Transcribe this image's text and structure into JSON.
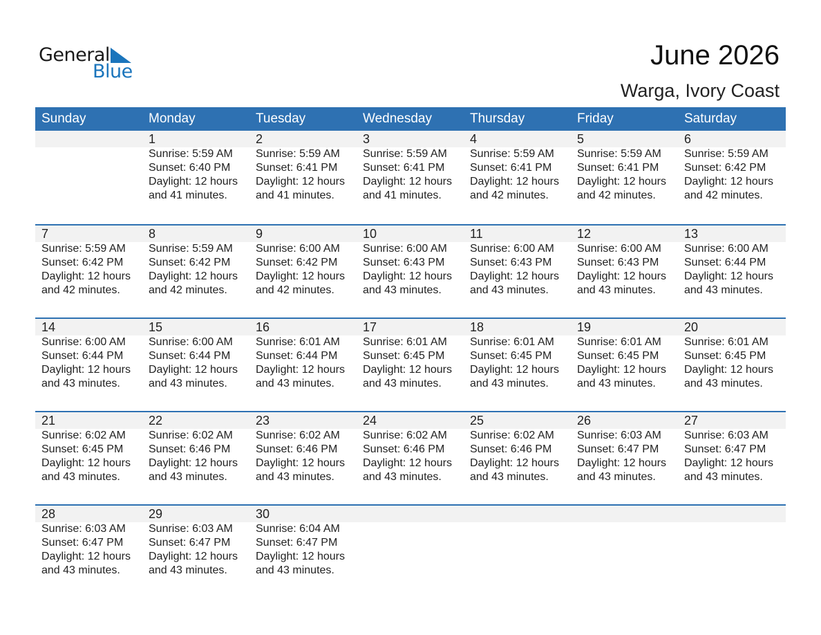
{
  "logo": {
    "line1": "General",
    "line2": "Blue",
    "color": "#1b75bc"
  },
  "title": "June 2026",
  "location": "Warga, Ivory Coast",
  "header_color": "#2e71b2",
  "weekdays": [
    "Sunday",
    "Monday",
    "Tuesday",
    "Wednesday",
    "Thursday",
    "Friday",
    "Saturday"
  ],
  "first_weekday_index": 1,
  "days": [
    {
      "day": "1",
      "sunrise": "Sunrise: 5:59 AM",
      "sunset": "Sunset: 6:40 PM",
      "daylight1": "Daylight: 12 hours",
      "daylight2": "and 41 minutes."
    },
    {
      "day": "2",
      "sunrise": "Sunrise: 5:59 AM",
      "sunset": "Sunset: 6:41 PM",
      "daylight1": "Daylight: 12 hours",
      "daylight2": "and 41 minutes."
    },
    {
      "day": "3",
      "sunrise": "Sunrise: 5:59 AM",
      "sunset": "Sunset: 6:41 PM",
      "daylight1": "Daylight: 12 hours",
      "daylight2": "and 41 minutes."
    },
    {
      "day": "4",
      "sunrise": "Sunrise: 5:59 AM",
      "sunset": "Sunset: 6:41 PM",
      "daylight1": "Daylight: 12 hours",
      "daylight2": "and 42 minutes."
    },
    {
      "day": "5",
      "sunrise": "Sunrise: 5:59 AM",
      "sunset": "Sunset: 6:41 PM",
      "daylight1": "Daylight: 12 hours",
      "daylight2": "and 42 minutes."
    },
    {
      "day": "6",
      "sunrise": "Sunrise: 5:59 AM",
      "sunset": "Sunset: 6:42 PM",
      "daylight1": "Daylight: 12 hours",
      "daylight2": "and 42 minutes."
    },
    {
      "day": "7",
      "sunrise": "Sunrise: 5:59 AM",
      "sunset": "Sunset: 6:42 PM",
      "daylight1": "Daylight: 12 hours",
      "daylight2": "and 42 minutes."
    },
    {
      "day": "8",
      "sunrise": "Sunrise: 5:59 AM",
      "sunset": "Sunset: 6:42 PM",
      "daylight1": "Daylight: 12 hours",
      "daylight2": "and 42 minutes."
    },
    {
      "day": "9",
      "sunrise": "Sunrise: 6:00 AM",
      "sunset": "Sunset: 6:42 PM",
      "daylight1": "Daylight: 12 hours",
      "daylight2": "and 42 minutes."
    },
    {
      "day": "10",
      "sunrise": "Sunrise: 6:00 AM",
      "sunset": "Sunset: 6:43 PM",
      "daylight1": "Daylight: 12 hours",
      "daylight2": "and 43 minutes."
    },
    {
      "day": "11",
      "sunrise": "Sunrise: 6:00 AM",
      "sunset": "Sunset: 6:43 PM",
      "daylight1": "Daylight: 12 hours",
      "daylight2": "and 43 minutes."
    },
    {
      "day": "12",
      "sunrise": "Sunrise: 6:00 AM",
      "sunset": "Sunset: 6:43 PM",
      "daylight1": "Daylight: 12 hours",
      "daylight2": "and 43 minutes."
    },
    {
      "day": "13",
      "sunrise": "Sunrise: 6:00 AM",
      "sunset": "Sunset: 6:44 PM",
      "daylight1": "Daylight: 12 hours",
      "daylight2": "and 43 minutes."
    },
    {
      "day": "14",
      "sunrise": "Sunrise: 6:00 AM",
      "sunset": "Sunset: 6:44 PM",
      "daylight1": "Daylight: 12 hours",
      "daylight2": "and 43 minutes."
    },
    {
      "day": "15",
      "sunrise": "Sunrise: 6:00 AM",
      "sunset": "Sunset: 6:44 PM",
      "daylight1": "Daylight: 12 hours",
      "daylight2": "and 43 minutes."
    },
    {
      "day": "16",
      "sunrise": "Sunrise: 6:01 AM",
      "sunset": "Sunset: 6:44 PM",
      "daylight1": "Daylight: 12 hours",
      "daylight2": "and 43 minutes."
    },
    {
      "day": "17",
      "sunrise": "Sunrise: 6:01 AM",
      "sunset": "Sunset: 6:45 PM",
      "daylight1": "Daylight: 12 hours",
      "daylight2": "and 43 minutes."
    },
    {
      "day": "18",
      "sunrise": "Sunrise: 6:01 AM",
      "sunset": "Sunset: 6:45 PM",
      "daylight1": "Daylight: 12 hours",
      "daylight2": "and 43 minutes."
    },
    {
      "day": "19",
      "sunrise": "Sunrise: 6:01 AM",
      "sunset": "Sunset: 6:45 PM",
      "daylight1": "Daylight: 12 hours",
      "daylight2": "and 43 minutes."
    },
    {
      "day": "20",
      "sunrise": "Sunrise: 6:01 AM",
      "sunset": "Sunset: 6:45 PM",
      "daylight1": "Daylight: 12 hours",
      "daylight2": "and 43 minutes."
    },
    {
      "day": "21",
      "sunrise": "Sunrise: 6:02 AM",
      "sunset": "Sunset: 6:45 PM",
      "daylight1": "Daylight: 12 hours",
      "daylight2": "and 43 minutes."
    },
    {
      "day": "22",
      "sunrise": "Sunrise: 6:02 AM",
      "sunset": "Sunset: 6:46 PM",
      "daylight1": "Daylight: 12 hours",
      "daylight2": "and 43 minutes."
    },
    {
      "day": "23",
      "sunrise": "Sunrise: 6:02 AM",
      "sunset": "Sunset: 6:46 PM",
      "daylight1": "Daylight: 12 hours",
      "daylight2": "and 43 minutes."
    },
    {
      "day": "24",
      "sunrise": "Sunrise: 6:02 AM",
      "sunset": "Sunset: 6:46 PM",
      "daylight1": "Daylight: 12 hours",
      "daylight2": "and 43 minutes."
    },
    {
      "day": "25",
      "sunrise": "Sunrise: 6:02 AM",
      "sunset": "Sunset: 6:46 PM",
      "daylight1": "Daylight: 12 hours",
      "daylight2": "and 43 minutes."
    },
    {
      "day": "26",
      "sunrise": "Sunrise: 6:03 AM",
      "sunset": "Sunset: 6:47 PM",
      "daylight1": "Daylight: 12 hours",
      "daylight2": "and 43 minutes."
    },
    {
      "day": "27",
      "sunrise": "Sunrise: 6:03 AM",
      "sunset": "Sunset: 6:47 PM",
      "daylight1": "Daylight: 12 hours",
      "daylight2": "and 43 minutes."
    },
    {
      "day": "28",
      "sunrise": "Sunrise: 6:03 AM",
      "sunset": "Sunset: 6:47 PM",
      "daylight1": "Daylight: 12 hours",
      "daylight2": "and 43 minutes."
    },
    {
      "day": "29",
      "sunrise": "Sunrise: 6:03 AM",
      "sunset": "Sunset: 6:47 PM",
      "daylight1": "Daylight: 12 hours",
      "daylight2": "and 43 minutes."
    },
    {
      "day": "30",
      "sunrise": "Sunrise: 6:04 AM",
      "sunset": "Sunset: 6:47 PM",
      "daylight1": "Daylight: 12 hours",
      "daylight2": "and 43 minutes."
    }
  ]
}
